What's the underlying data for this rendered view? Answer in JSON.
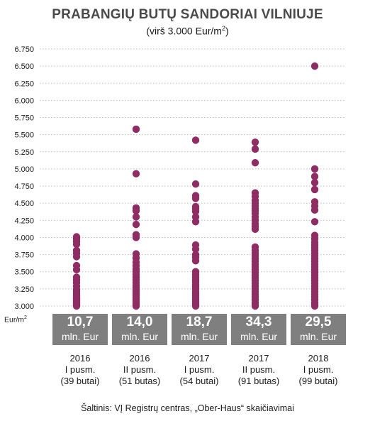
{
  "chart_data": {
    "type": "scatter",
    "title": "PRABANGIŲ BUTŲ SANDORIAI VILNIUJE",
    "subtitle_text": "(virš 3.000 Eur/m",
    "subtitle_sup": "2",
    "subtitle_close": ")",
    "ylabel_text": "Eur/m",
    "ylabel_sup": "2",
    "ylim": [
      3000,
      6750
    ],
    "yticks": [
      "6.750",
      "6.500",
      "6.250",
      "6.000",
      "5.750",
      "5.500",
      "5.250",
      "5.000",
      "4.750",
      "4.500",
      "4.250",
      "4.000",
      "3.750",
      "3.500",
      "3.250",
      "3.000"
    ],
    "ytick_values": [
      6750,
      6500,
      6250,
      6000,
      5750,
      5500,
      5250,
      5000,
      4750,
      4500,
      4250,
      4000,
      3750,
      3500,
      3250,
      3000
    ],
    "grid": true,
    "series": [
      {
        "year": "2016",
        "period": "I pusm.",
        "count": "(39 butai)",
        "total_value": "10,7",
        "total_unit": "mln. Eur",
        "values": [
          4010,
          3980,
          3940,
          3900,
          3810,
          3770,
          3720,
          3590,
          3530,
          3420,
          3380,
          3340,
          3290,
          3240,
          3210,
          3180,
          3150,
          3120,
          3100,
          3080,
          3060,
          3040,
          3020,
          3010,
          3000
        ]
      },
      {
        "year": "2016",
        "period": "II pusm.",
        "count": "(51 butas)",
        "total_value": "14,0",
        "total_unit": "mln. Eur",
        "values": [
          5580,
          4930,
          4430,
          4390,
          4300,
          4190,
          4040,
          4000,
          3760,
          3700,
          3640,
          3590,
          3540,
          3500,
          3460,
          3420,
          3380,
          3340,
          3300,
          3270,
          3240,
          3210,
          3180,
          3150,
          3120,
          3090,
          3060,
          3030,
          3010,
          3000
        ]
      },
      {
        "year": "2017",
        "period": "I pusm.",
        "count": "(54 butai)",
        "total_value": "18,7",
        "total_unit": "mln. Eur",
        "values": [
          5420,
          4780,
          4610,
          4570,
          4450,
          4420,
          4380,
          4300,
          4230,
          3890,
          3830,
          3750,
          3710,
          3660,
          3500,
          3460,
          3420,
          3380,
          3350,
          3310,
          3280,
          3250,
          3210,
          3180,
          3150,
          3120,
          3090,
          3060,
          3030,
          3010,
          3000
        ]
      },
      {
        "year": "2017",
        "period": "II pusm.",
        "count": "(91 butas)",
        "total_value": "34,3",
        "total_unit": "mln. Eur",
        "values": [
          5390,
          5290,
          5090,
          4650,
          4600,
          4540,
          4500,
          4460,
          4420,
          4390,
          4350,
          4300,
          4250,
          4200,
          4160,
          4120,
          3860,
          3810,
          3770,
          3730,
          3690,
          3650,
          3610,
          3570,
          3530,
          3490,
          3450,
          3410,
          3370,
          3330,
          3290,
          3250,
          3210,
          3170,
          3130,
          3090,
          3050,
          3020,
          3000
        ]
      },
      {
        "year": "2018",
        "period": "I pusm.",
        "count": "(99 butai)",
        "total_value": "29,5",
        "total_unit": "mln. Eur",
        "values": [
          6500,
          5000,
          4890,
          4800,
          4700,
          4520,
          4460,
          4400,
          4230,
          4030,
          3980,
          3930,
          3890,
          3850,
          3810,
          3770,
          3730,
          3690,
          3650,
          3610,
          3570,
          3530,
          3490,
          3450,
          3410,
          3370,
          3330,
          3290,
          3250,
          3210,
          3170,
          3130,
          3090,
          3050,
          3020,
          3000
        ]
      }
    ]
  },
  "source": "Šaltinis: VĮ Registrų centras, „Ober-Haus“ skaičiavimai",
  "colors": {
    "dot": "#8e2c63",
    "box": "#7f7f7f",
    "grid": "#bdbdbd"
  }
}
